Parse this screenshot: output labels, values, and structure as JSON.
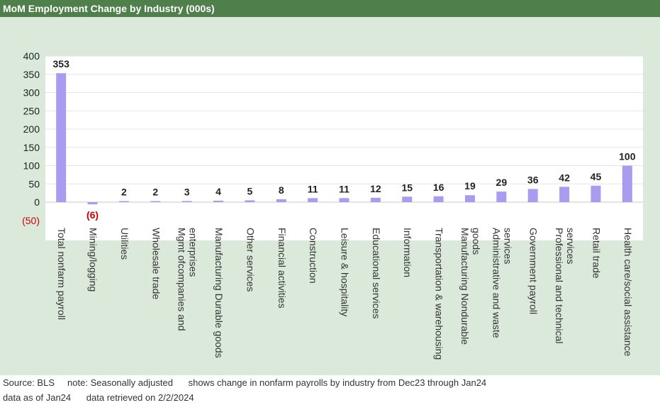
{
  "header": {
    "title": "MoM Employment Change by Industry (000s)"
  },
  "footer": {
    "line1": "Source: BLS     note: Seasonally adjusted      shows change in nonfarm payrolls by industry from Dec23 through Jan24",
    "line2": "data as of Jan24      data retrieved on 2/2/2024"
  },
  "colors": {
    "header_bg": "#4f7f4a",
    "panel_bg": "#dbe9db",
    "bar": "#a99cf0",
    "negative_label": "#cc0000"
  },
  "chart_data": {
    "type": "bar",
    "title": "MoM Employment Change by Industry (000s)",
    "ylim": [
      -50,
      400
    ],
    "yticks": [
      400,
      350,
      300,
      250,
      200,
      150,
      100,
      50,
      0,
      -50
    ],
    "ytick_labels": [
      "400",
      "350",
      "300",
      "250",
      "200",
      "150",
      "100",
      "50",
      "0",
      "(50)"
    ],
    "grid": true,
    "categories": [
      [
        "Total nonfarm payroll"
      ],
      [
        "Mining/logging"
      ],
      [
        "Utilities"
      ],
      [
        "Wholesale trade"
      ],
      [
        "Mgmt ofcompanies and",
        "enterprises"
      ],
      [
        "Manufacturing Durable goods"
      ],
      [
        "Other services"
      ],
      [
        "Financial activities"
      ],
      [
        "Construction"
      ],
      [
        "Leisure & hospitality"
      ],
      [
        "Educational services"
      ],
      [
        "Information"
      ],
      [
        "Transportation & warehousing"
      ],
      [
        "Manufacturing Nondurable",
        "goods"
      ],
      [
        "Administrative and waste",
        "services"
      ],
      [
        "Government payroll"
      ],
      [
        "Professional and technical",
        "services"
      ],
      [
        "Retail trade"
      ],
      [
        "Health care/social assistance"
      ]
    ],
    "values": [
      353,
      -6,
      2,
      2,
      3,
      4,
      5,
      8,
      11,
      11,
      12,
      15,
      16,
      19,
      29,
      36,
      42,
      45,
      100
    ],
    "value_labels": [
      "353",
      "(6)",
      "2",
      "2",
      "3",
      "4",
      "5",
      "8",
      "11",
      "11",
      "12",
      "15",
      "16",
      "19",
      "29",
      "36",
      "42",
      "45",
      "100"
    ]
  }
}
